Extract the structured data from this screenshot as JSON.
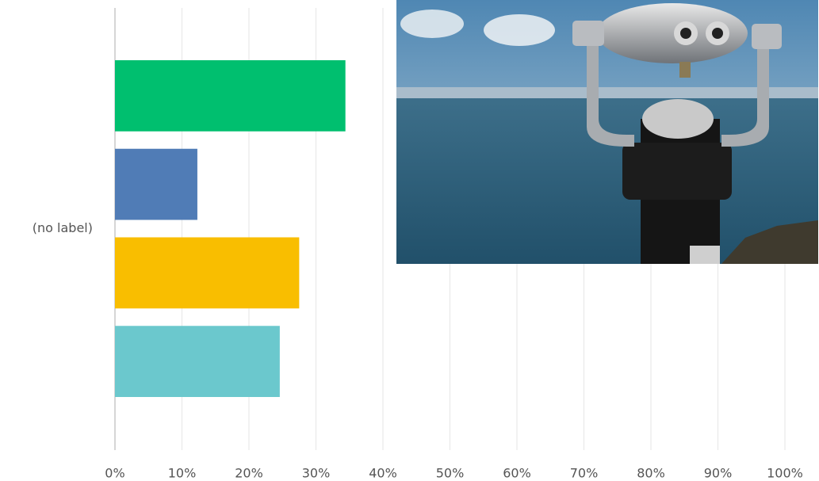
{
  "chart_data": {
    "type": "bar",
    "orientation": "horizontal",
    "categories": [
      "(no label)"
    ],
    "series": [
      {
        "color": "#00bf6f",
        "values": [
          34.4
        ]
      },
      {
        "color": "#507cb6",
        "values": [
          12.3
        ]
      },
      {
        "color": "#f9be00",
        "values": [
          27.5
        ]
      },
      {
        "color": "#6bc8cd",
        "values": [
          24.6
        ]
      }
    ],
    "xlim": [
      0,
      100
    ],
    "xticks": [
      {
        "value": 0,
        "label": "0%"
      },
      {
        "value": 10,
        "label": "10%"
      },
      {
        "value": 20,
        "label": "20%"
      },
      {
        "value": 30,
        "label": "30%"
      },
      {
        "value": 40,
        "label": "40%"
      },
      {
        "value": 50,
        "label": "50%"
      },
      {
        "value": 60,
        "label": "60%"
      },
      {
        "value": 70,
        "label": "70%"
      },
      {
        "value": 80,
        "label": "80%"
      },
      {
        "value": 90,
        "label": "90%"
      },
      {
        "value": 100,
        "label": "100%"
      }
    ],
    "grid": true
  }
}
